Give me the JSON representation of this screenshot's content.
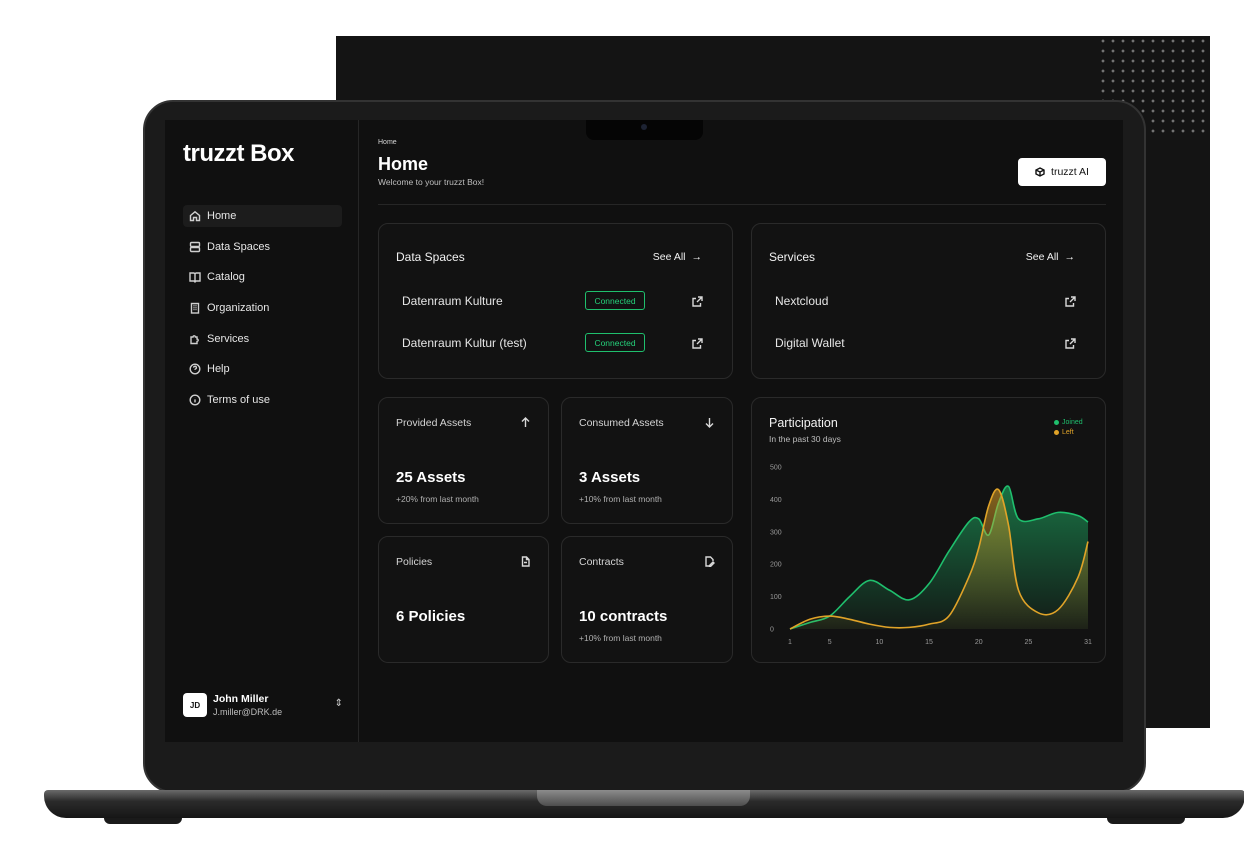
{
  "app": {
    "logo": "truzzt Box"
  },
  "sidebar": {
    "items": [
      {
        "label": "Home",
        "icon": "home-icon"
      },
      {
        "label": "Data Spaces",
        "icon": "database-icon"
      },
      {
        "label": "Catalog",
        "icon": "book-icon"
      },
      {
        "label": "Organization",
        "icon": "building-icon"
      },
      {
        "label": "Services",
        "icon": "puzzle-icon"
      },
      {
        "label": "Help",
        "icon": "help-icon"
      },
      {
        "label": "Terms of use",
        "icon": "info-icon"
      }
    ],
    "active": "Home",
    "user": {
      "initials": "JD",
      "name": "John Miller",
      "email": "J.miller@DRK.de"
    }
  },
  "header": {
    "breadcrumb": "Home",
    "title": "Home",
    "subtitle": "Welcome to your truzzt Box!",
    "ai_button": "truzzt AI"
  },
  "data_spaces": {
    "title": "Data Spaces",
    "see_all": "See All",
    "rows": [
      {
        "name": "Datenraum Kulture",
        "status": "Connected"
      },
      {
        "name": "Datenraum Kultur (test)",
        "status": "Connected"
      }
    ]
  },
  "services": {
    "title": "Services",
    "see_all": "See All",
    "rows": [
      {
        "name": "Nextcloud"
      },
      {
        "name": "Digital Wallet"
      }
    ]
  },
  "stats": {
    "provided": {
      "label": "Provided Assets",
      "value": "25 Assets",
      "sub": "+20% from last month"
    },
    "consumed": {
      "label": "Consumed Assets",
      "value": "3 Assets",
      "sub": "+10% from last month"
    },
    "policies": {
      "label": "Policies",
      "value": "6 Policies"
    },
    "contracts": {
      "label": "Contracts",
      "value": "10 contracts",
      "sub": "+10% from last month"
    }
  },
  "chart_data": {
    "type": "area",
    "title": "Participation",
    "subtitle": "In the past 30 days",
    "ylim": [
      0,
      500
    ],
    "yticks": [
      0,
      100,
      200,
      300,
      400,
      500
    ],
    "xticks": [
      1,
      5,
      10,
      15,
      20,
      25,
      31
    ],
    "xlim": [
      1,
      31
    ],
    "colors": {
      "Joined": "#1fbf6d",
      "Left": "#e0a328"
    },
    "series": [
      {
        "name": "Joined",
        "x": [
          1,
          3,
          5,
          7,
          9,
          11,
          13,
          15,
          17,
          19,
          20,
          21,
          22,
          23,
          24,
          26,
          28,
          30,
          31
        ],
        "values": [
          0,
          20,
          40,
          100,
          150,
          120,
          90,
          140,
          240,
          330,
          340,
          290,
          390,
          440,
          340,
          340,
          360,
          350,
          330
        ]
      },
      {
        "name": "Left",
        "x": [
          1,
          3,
          5,
          7,
          9,
          11,
          13,
          15,
          17,
          19,
          20,
          21,
          22,
          23,
          24,
          26,
          28,
          30,
          31
        ],
        "values": [
          0,
          30,
          40,
          30,
          15,
          5,
          5,
          15,
          40,
          160,
          250,
          380,
          430,
          320,
          120,
          50,
          60,
          160,
          270
        ]
      }
    ],
    "legend": "top-right",
    "grid": false
  }
}
